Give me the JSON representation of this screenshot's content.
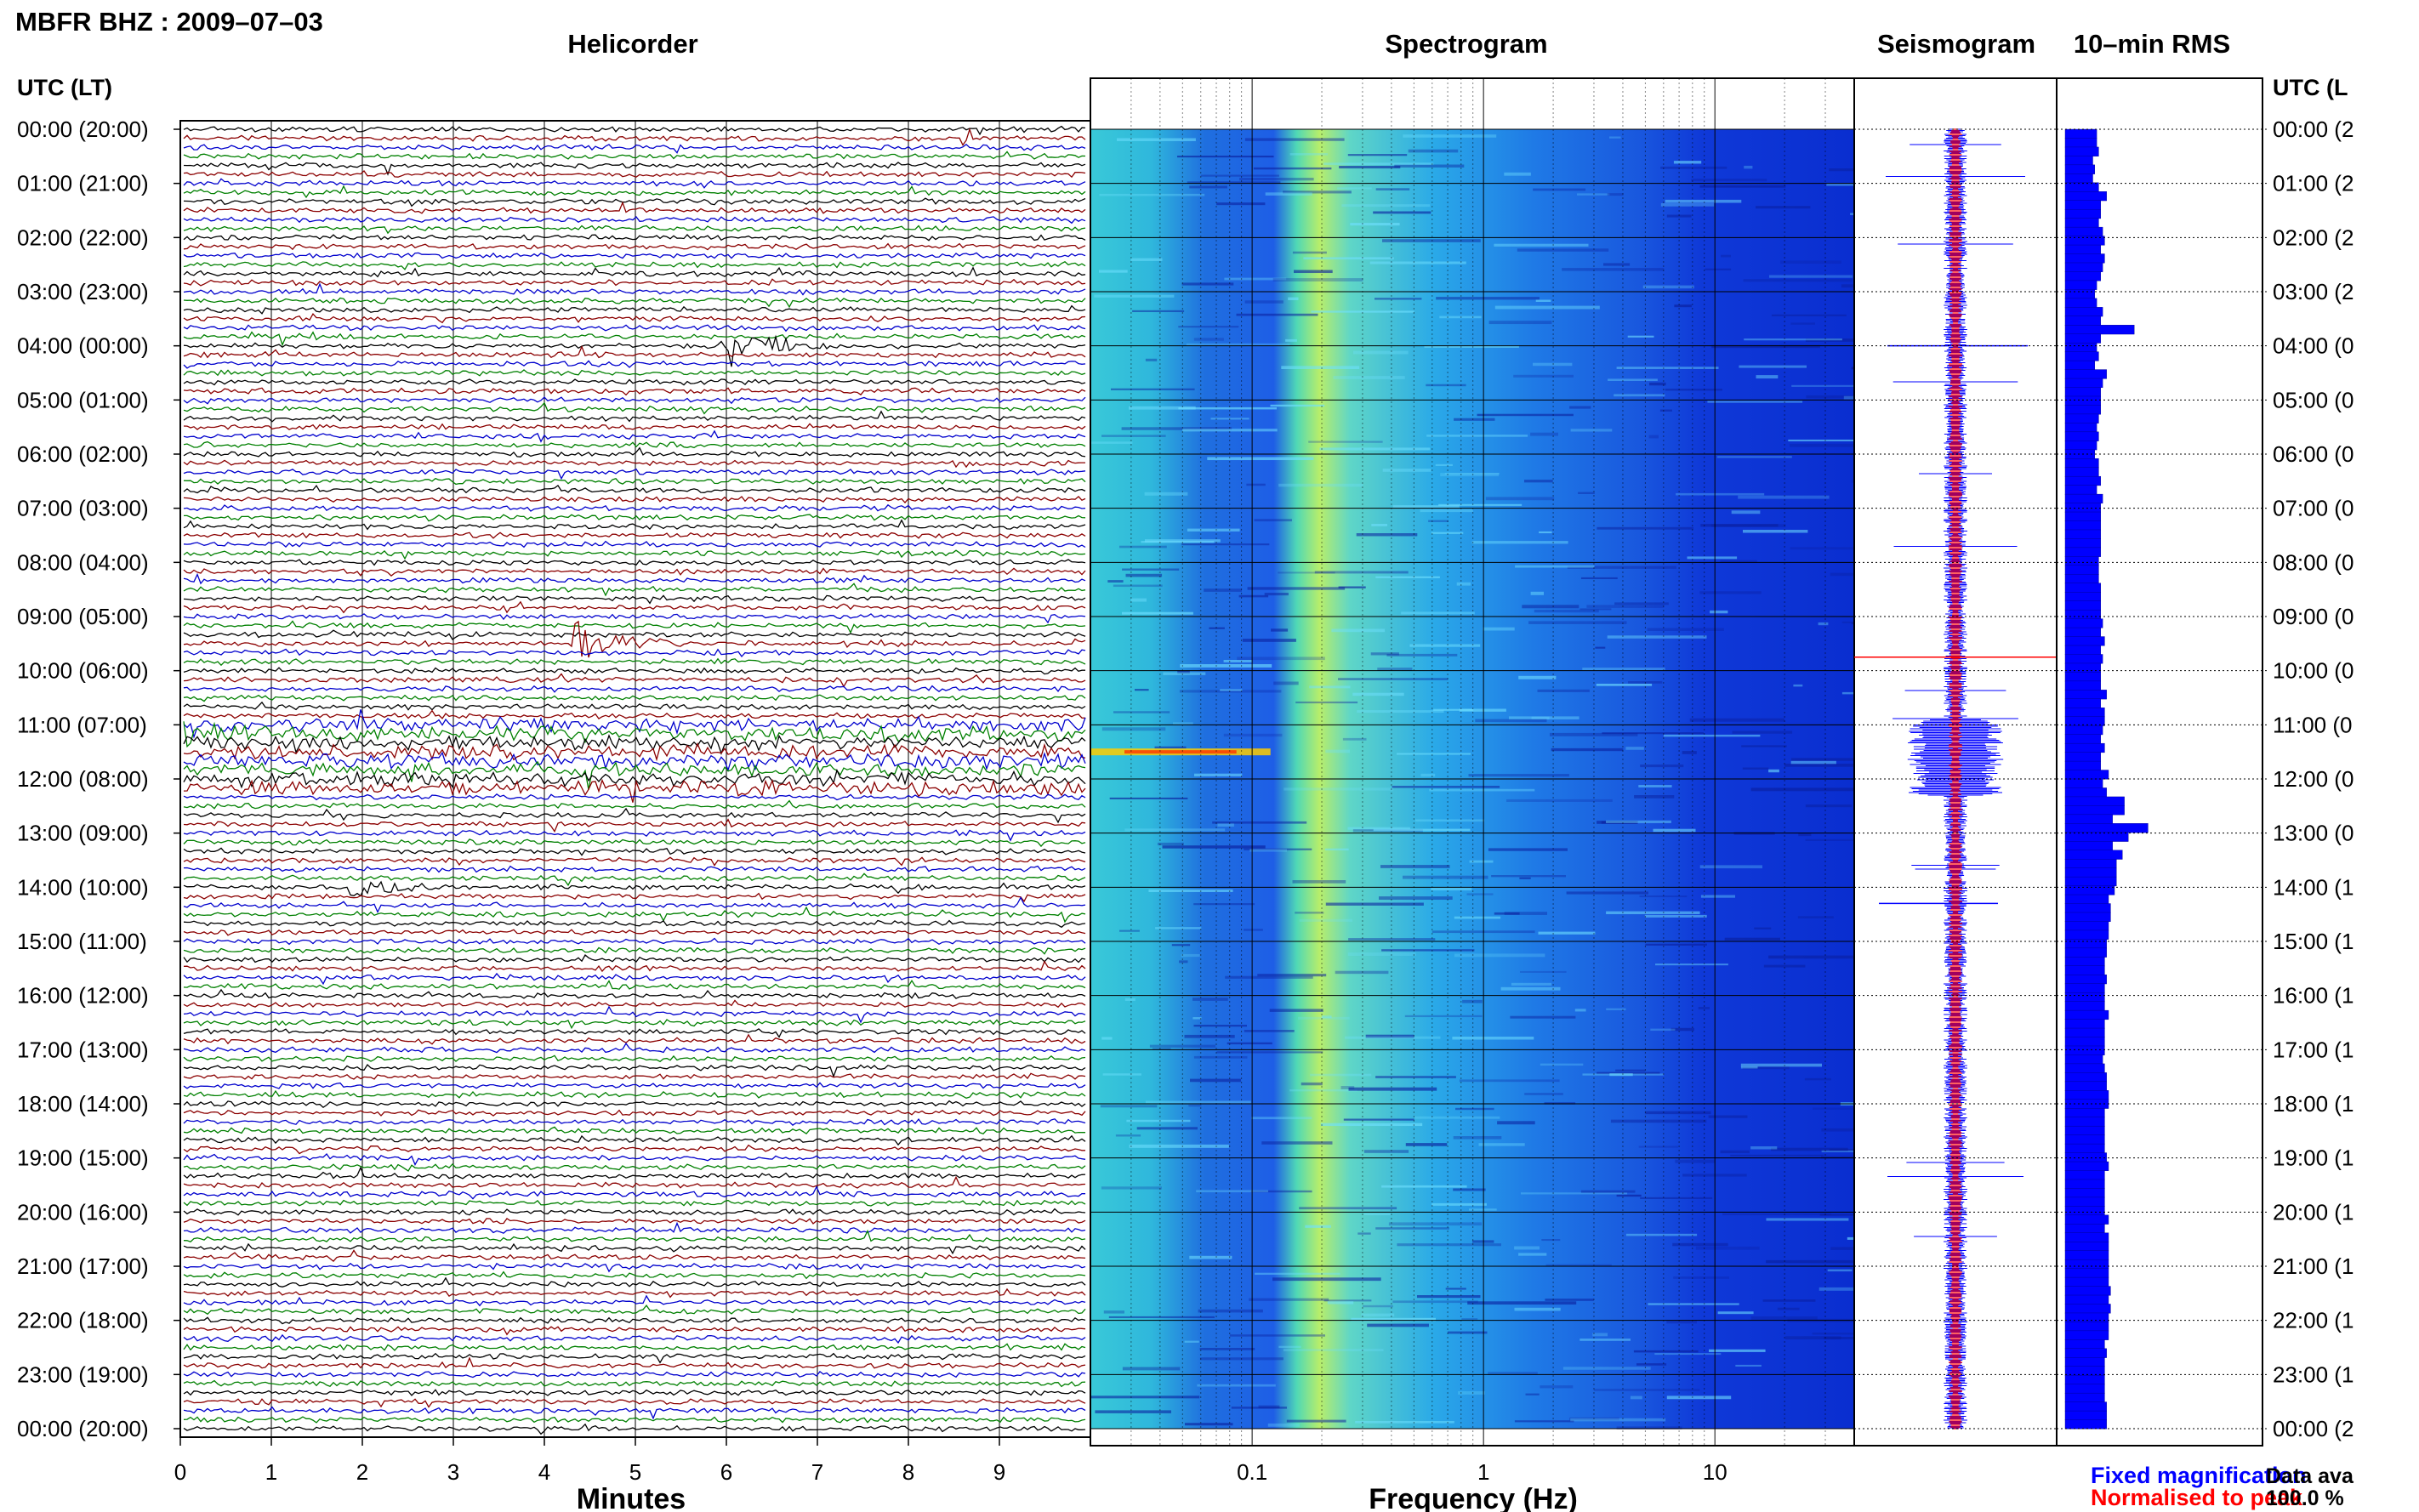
{
  "figure_title": "MBFR BHZ : 2009–07–03",
  "panel_titles": {
    "helicorder": "Helicorder",
    "spectrogram": "Spectrogram",
    "seismogram": "Seismogram",
    "rms": "10–min RMS"
  },
  "time_axis": {
    "left_label": "UTC (LT)",
    "right_label": "UTC (L",
    "ticks": [
      "00:00 (20:00)",
      "01:00 (21:00)",
      "02:00 (22:00)",
      "03:00 (23:00)",
      "04:00 (00:00)",
      "05:00 (01:00)",
      "06:00 (02:00)",
      "07:00 (03:00)",
      "08:00 (04:00)",
      "09:00 (05:00)",
      "10:00 (06:00)",
      "11:00 (07:00)",
      "12:00 (08:00)",
      "13:00 (09:00)",
      "14:00 (10:00)",
      "15:00 (11:00)",
      "16:00 (12:00)",
      "17:00 (13:00)",
      "18:00 (14:00)",
      "19:00 (15:00)",
      "20:00 (16:00)",
      "21:00 (17:00)",
      "22:00 (18:00)",
      "23:00 (19:00)",
      "00:00 (20:00)"
    ],
    "right_ticks": [
      "00:00 (2",
      "01:00 (2",
      "02:00 (2",
      "03:00 (2",
      "04:00 (0",
      "05:00 (0",
      "06:00 (0",
      "07:00 (0",
      "08:00 (0",
      "09:00 (0",
      "10:00 (0",
      "11:00 (0",
      "12:00 (0",
      "13:00 (0",
      "14:00 (1",
      "15:00 (1",
      "16:00 (1",
      "17:00 (1",
      "18:00 (1",
      "19:00 (1",
      "20:00 (1",
      "21:00 (1",
      "22:00 (1",
      "23:00 (1",
      "00:00 (2"
    ]
  },
  "helicorder_axis": {
    "label": "Minutes",
    "ticks": [
      "0",
      "1",
      "2",
      "3",
      "4",
      "5",
      "6",
      "7",
      "8",
      "9"
    ]
  },
  "spectrogram_axis": {
    "label": "Frequency (Hz)",
    "ticks": [
      "0.1",
      "1",
      "10"
    ]
  },
  "legend": {
    "fixed": "Fixed magnification",
    "normalised": "Normalised to peak",
    "fixed_color": "#0000ff",
    "normalised_color": "#ff0000"
  },
  "availability": {
    "label": "Data ava",
    "value": "100.0 %"
  },
  "colors": {
    "trace_cycle": [
      "#000000",
      "#8b0000",
      "#0000cd",
      "#008000"
    ],
    "rms_bar": "#0000ff"
  },
  "chart_data": [
    {
      "type": "line",
      "name": "helicorder",
      "xlabel": "Minutes",
      "xlim": [
        0,
        10
      ],
      "ylim_hours_utc": [
        0,
        24
      ],
      "lines_per_hour": 6,
      "events": [
        {
          "hour": 4.0,
          "minute": 6.0,
          "amplitude": "large",
          "color": "#008000"
        },
        {
          "hour": 9.5,
          "minute": 4.3,
          "amplitude": "large",
          "color": "#0000cd"
        },
        {
          "hour": 11.17,
          "minute": 0.0,
          "amplitude": "elevated noise",
          "color": "#000000"
        },
        {
          "hour": 14.0,
          "minute": 1.8,
          "amplitude": "medium",
          "color": "#0000cd"
        }
      ]
    },
    {
      "type": "heatmap",
      "name": "spectrogram",
      "xlabel": "Frequency (Hz)",
      "x_scale": "log",
      "xlim": [
        0.02,
        40
      ],
      "ylim_hours_utc": [
        0,
        24
      ],
      "microseism_peak_hz": 0.25,
      "strong_band": {
        "hour": 11.5,
        "freq_range_hz": [
          0.02,
          0.12
        ]
      }
    },
    {
      "type": "bar",
      "name": "10-min RMS",
      "orientation": "horizontal",
      "relative_values": [
        0.16,
        0.16,
        0.17,
        0.14,
        0.15,
        0.14,
        0.17,
        0.21,
        0.18,
        0.18,
        0.17,
        0.19,
        0.2,
        0.18,
        0.2,
        0.19,
        0.18,
        0.16,
        0.15,
        0.16,
        0.19,
        0.18,
        0.35,
        0.18,
        0.16,
        0.17,
        0.15,
        0.21,
        0.19,
        0.18,
        0.18,
        0.18,
        0.17,
        0.16,
        0.17,
        0.16,
        0.15,
        0.17,
        0.17,
        0.18,
        0.16,
        0.19,
        0.18,
        0.18,
        0.18,
        0.18,
        0.18,
        0.18,
        0.17,
        0.17,
        0.17,
        0.18,
        0.18,
        0.18,
        0.18,
        0.19,
        0.18,
        0.2,
        0.18,
        0.19,
        0.18,
        0.18,
        0.18,
        0.21,
        0.18,
        0.2,
        0.2,
        0.19,
        0.18,
        0.2,
        0.18,
        0.18,
        0.22,
        0.19,
        0.21,
        0.3,
        0.3,
        0.24,
        0.42,
        0.32,
        0.24,
        0.29,
        0.26,
        0.26,
        0.26,
        0.25,
        0.22,
        0.23,
        0.23,
        0.22,
        0.22,
        0.21,
        0.21,
        0.2,
        0.2,
        0.21,
        0.2,
        0.2,
        0.2,
        0.22,
        0.2,
        0.2,
        0.2,
        0.2,
        0.19,
        0.2,
        0.21,
        0.21,
        0.22,
        0.22,
        0.2,
        0.2,
        0.2,
        0.2,
        0.2,
        0.21,
        0.22,
        0.2,
        0.2,
        0.2,
        0.2,
        0.2,
        0.22,
        0.2,
        0.22,
        0.22,
        0.22,
        0.22,
        0.22,
        0.22,
        0.23,
        0.22,
        0.23,
        0.22,
        0.22,
        0.22,
        0.2,
        0.21,
        0.2,
        0.2,
        0.2,
        0.2,
        0.2,
        0.21,
        0.21,
        0.21
      ]
    }
  ]
}
